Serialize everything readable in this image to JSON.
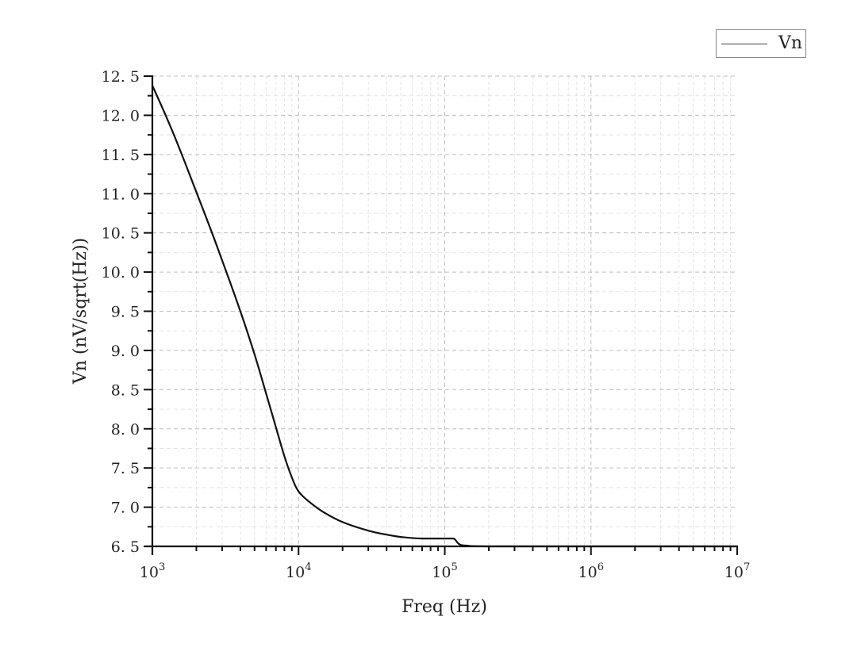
{
  "chart_data": {
    "type": "line",
    "title": "",
    "xlabel": "Freq (Hz)",
    "ylabel": "Vn (nV/sqrt(Hz))",
    "xscale": "log",
    "xlim": [
      1000,
      10000000
    ],
    "ylim": [
      6.5,
      12.5
    ],
    "x_ticks": [
      "10^3",
      "10^4",
      "10^5",
      "10^6",
      "10^7"
    ],
    "y_ticks": [
      "6.5",
      "7.0",
      "7.5",
      "8.0",
      "8.5",
      "9.0",
      "9.5",
      "10.0",
      "10.5",
      "11.0",
      "11.5",
      "12.0",
      "12.5"
    ],
    "grid": true,
    "legend_position": "top-right",
    "series": [
      {
        "name": "Vn",
        "color": "#111111",
        "x": [
          1000,
          1200,
          1500,
          2000,
          2500,
          3000,
          4000,
          5000,
          6000,
          7000,
          8000,
          9000,
          10000,
          12000,
          15000,
          20000,
          30000,
          40000,
          50000,
          70000,
          100000,
          115000,
          125000,
          140000,
          200000,
          1000000,
          10000000
        ],
        "values": [
          12.38,
          12.05,
          11.62,
          11.02,
          10.55,
          10.15,
          9.5,
          8.95,
          8.45,
          8.02,
          7.65,
          7.38,
          7.2,
          7.06,
          6.93,
          6.81,
          6.7,
          6.65,
          6.62,
          6.6,
          6.6,
          6.6,
          6.53,
          6.51,
          6.5,
          6.5,
          6.5
        ]
      }
    ]
  },
  "legend": {
    "items": [
      {
        "label": "Vn"
      }
    ]
  },
  "axes": {
    "x_title": "Freq (Hz)",
    "y_title": "Vn (nV/sqrt(Hz))",
    "x_tick_labels": [
      {
        "base": "10",
        "exp": "3"
      },
      {
        "base": "10",
        "exp": "4"
      },
      {
        "base": "10",
        "exp": "5"
      },
      {
        "base": "10",
        "exp": "6"
      },
      {
        "base": "10",
        "exp": "7"
      }
    ],
    "y_tick_labels": [
      "6. 5",
      "7. 0",
      "7. 5",
      "8. 0",
      "8. 5",
      "9. 0",
      "9. 5",
      "10. 0",
      "10. 5",
      "11. 0",
      "11. 5",
      "12. 0",
      "12. 5"
    ]
  }
}
